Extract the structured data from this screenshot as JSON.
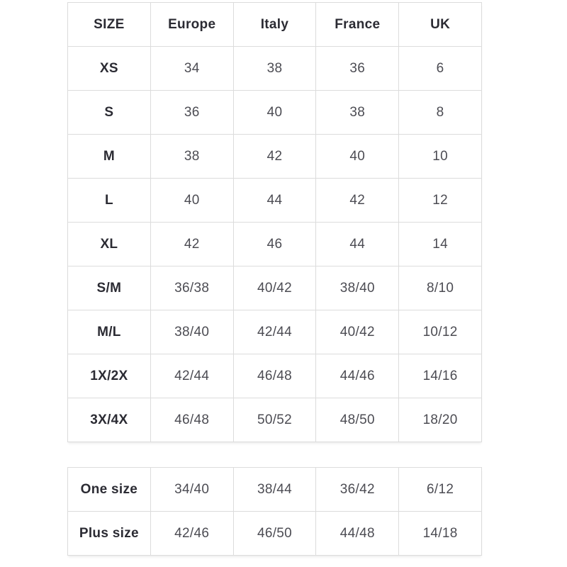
{
  "colors": {
    "background": "#ffffff",
    "border": "#dcdcdc",
    "header_text": "#2b2b33",
    "value_text": "#4c4c53"
  },
  "size_table": {
    "headers": [
      "SIZE",
      "Europe",
      "Italy",
      "France",
      "UK"
    ],
    "rows": [
      {
        "label": "XS",
        "values": [
          "34",
          "38",
          "36",
          "6"
        ]
      },
      {
        "label": "S",
        "values": [
          "36",
          "40",
          "38",
          "8"
        ]
      },
      {
        "label": "M",
        "values": [
          "38",
          "42",
          "40",
          "10"
        ]
      },
      {
        "label": "L",
        "values": [
          "40",
          "44",
          "42",
          "12"
        ]
      },
      {
        "label": "XL",
        "values": [
          "42",
          "46",
          "44",
          "14"
        ]
      },
      {
        "label": "S/M",
        "values": [
          "36/38",
          "40/42",
          "38/40",
          "8/10"
        ]
      },
      {
        "label": "M/L",
        "values": [
          "38/40",
          "42/44",
          "40/42",
          "10/12"
        ]
      },
      {
        "label": "1X/2X",
        "values": [
          "42/44",
          "46/48",
          "44/46",
          "14/16"
        ]
      },
      {
        "label": "3X/4X",
        "values": [
          "46/48",
          "50/52",
          "48/50",
          "18/20"
        ]
      }
    ]
  },
  "special_size_table": {
    "rows": [
      {
        "label": "One size",
        "values": [
          "34/40",
          "38/44",
          "36/42",
          "6/12"
        ]
      },
      {
        "label": "Plus size",
        "values": [
          "42/46",
          "46/50",
          "44/48",
          "14/18"
        ]
      }
    ]
  }
}
